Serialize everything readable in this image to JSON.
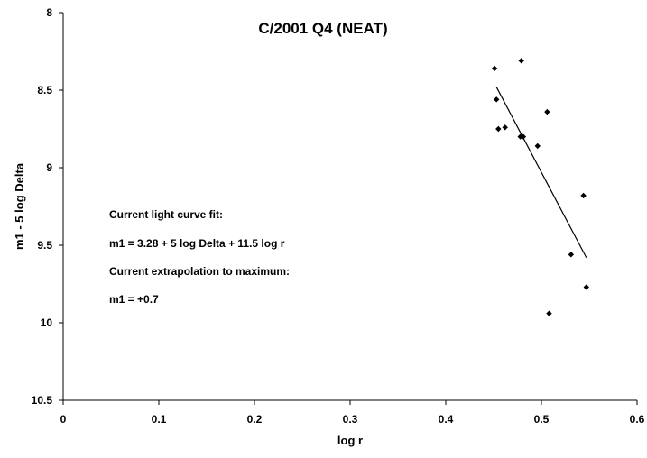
{
  "chart_data": {
    "type": "scatter",
    "title": "C/2001 Q4 (NEAT)",
    "xlabel": "log r",
    "ylabel": "m1 - 5 log Delta",
    "xlim": [
      0,
      0.6
    ],
    "ylim": [
      8,
      10.5
    ],
    "y_inverted": true,
    "x_ticks": [
      0,
      0.1,
      0.2,
      0.3,
      0.4,
      0.5,
      0.6
    ],
    "x_tick_labels": [
      "0",
      "0.1",
      "0.2",
      "0.3",
      "0.4",
      "0.5",
      "0.6"
    ],
    "y_ticks": [
      8,
      8.5,
      9,
      9.5,
      10,
      10.5
    ],
    "y_tick_labels": [
      "8",
      "8.5",
      "9",
      "9.5",
      "10",
      "10.5"
    ],
    "grid": false,
    "legend": "none",
    "marker": "diamond",
    "marker_color": "#000000",
    "points": [
      {
        "x": 0.451,
        "y": 8.36
      },
      {
        "x": 0.453,
        "y": 8.56
      },
      {
        "x": 0.455,
        "y": 8.75
      },
      {
        "x": 0.462,
        "y": 8.74
      },
      {
        "x": 0.478,
        "y": 8.8
      },
      {
        "x": 0.479,
        "y": 8.31
      },
      {
        "x": 0.481,
        "y": 8.8
      },
      {
        "x": 0.496,
        "y": 8.86
      },
      {
        "x": 0.506,
        "y": 8.64
      },
      {
        "x": 0.508,
        "y": 9.94
      },
      {
        "x": 0.531,
        "y": 9.56
      },
      {
        "x": 0.544,
        "y": 9.18
      },
      {
        "x": 0.547,
        "y": 9.77
      }
    ],
    "fit_line": {
      "x": [
        0.453,
        0.547
      ],
      "y": [
        8.48,
        9.58
      ]
    },
    "annotations": [
      "Current light curve fit:",
      "m1 = 3.28 + 5 log Delta + 11.5 log r",
      "Current extrapolation to maximum:",
      "m1 = +0.7"
    ]
  }
}
